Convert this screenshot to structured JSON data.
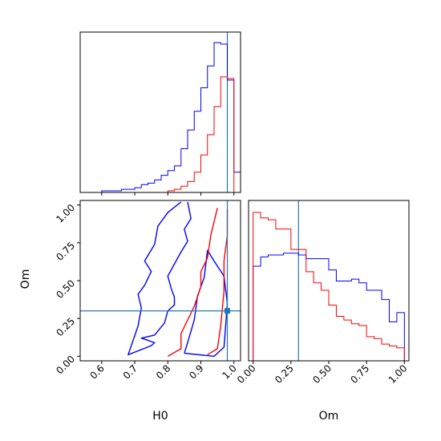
{
  "chart_data": [
    {
      "panel": "H0 marginal histogram",
      "type": "histogram",
      "xlabel": "",
      "xlim": [
        0.535,
        1.02
      ],
      "x_ticks": [
        0.6,
        0.7,
        0.8,
        0.9,
        1.0
      ],
      "truth_x": 0.98,
      "colors": {
        "series_blue": "#0000ff",
        "series_red": "#ff0000",
        "truth": "#1f77b4"
      },
      "bins": [
        0.6,
        0.62,
        0.64,
        0.66,
        0.68,
        0.7,
        0.72,
        0.74,
        0.76,
        0.78,
        0.8,
        0.82,
        0.84,
        0.86,
        0.88,
        0.9,
        0.92,
        0.94,
        0.96,
        0.98,
        1.0,
        1.02
      ],
      "series": [
        {
          "color": "blue",
          "values": [
            1,
            1,
            1,
            2,
            2,
            3,
            5,
            6,
            8,
            11,
            14,
            17,
            28,
            40,
            52,
            67,
            81,
            96,
            95,
            72,
            13
          ]
        },
        {
          "color": "red",
          "values": [
            0,
            0,
            0,
            0,
            0,
            0,
            0,
            0,
            0,
            0,
            1,
            2,
            4,
            7,
            13,
            24,
            37,
            55,
            74,
            73,
            0
          ]
        }
      ]
    },
    {
      "panel": "Om vs H0 2D contours",
      "type": "contour",
      "xlabel": "H0",
      "ylabel": "Om",
      "xlim": [
        0.535,
        1.02
      ],
      "ylim": [
        -0.03,
        1.03
      ],
      "x_ticks": [
        0.6,
        0.7,
        0.8,
        0.9,
        1.0
      ],
      "x_tick_labels": [
        "0.6",
        "0.7",
        "0.8",
        "0.9",
        "1.0"
      ],
      "y_ticks": [
        0.0,
        0.25,
        0.5,
        0.75,
        1.0
      ],
      "y_tick_labels": [
        "0.00",
        "0.25",
        "0.50",
        "0.75",
        "1.00"
      ],
      "truth": {
        "x": 0.98,
        "y": 0.3
      },
      "contours": [
        {
          "color": "blue",
          "level": "outer",
          "points": [
            [
              0.84,
              1.02
            ],
            [
              0.8,
              0.95
            ],
            [
              0.77,
              0.86
            ],
            [
              0.76,
              0.74
            ],
            [
              0.73,
              0.63
            ],
            [
              0.75,
              0.56
            ],
            [
              0.73,
              0.47
            ],
            [
              0.71,
              0.41
            ],
            [
              0.72,
              0.32
            ],
            [
              0.71,
              0.2
            ],
            [
              0.68,
              0.01
            ],
            [
              0.75,
              0.07
            ],
            [
              0.76,
              0.09
            ],
            [
              0.72,
              0.12
            ],
            [
              0.76,
              0.14
            ],
            [
              0.79,
              0.22
            ],
            [
              0.8,
              0.3
            ],
            [
              0.82,
              0.34
            ],
            [
              0.82,
              0.39
            ],
            [
              0.81,
              0.45
            ],
            [
              0.8,
              0.53
            ],
            [
              0.82,
              0.61
            ],
            [
              0.84,
              0.69
            ],
            [
              0.86,
              0.76
            ],
            [
              0.85,
              0.84
            ],
            [
              0.87,
              0.91
            ],
            [
              0.86,
              1.02
            ]
          ]
        },
        {
          "color": "blue",
          "level": "inner",
          "points": [
            [
              0.85,
              0.02
            ],
            [
              0.94,
              0.0
            ],
            [
              0.97,
              0.06
            ],
            [
              0.98,
              0.35
            ],
            [
              0.97,
              0.53
            ],
            [
              0.94,
              0.63
            ],
            [
              0.92,
              0.7
            ],
            [
              0.91,
              0.52
            ],
            [
              0.89,
              0.4
            ],
            [
              0.88,
              0.24
            ],
            [
              0.86,
              0.09
            ],
            [
              0.85,
              0.02
            ]
          ]
        },
        {
          "color": "red",
          "level": "outer",
          "points": [
            [
              0.8,
              0.0
            ],
            [
              0.84,
              0.05
            ],
            [
              0.84,
              0.15
            ],
            [
              0.86,
              0.24
            ],
            [
              0.88,
              0.33
            ],
            [
              0.9,
              0.46
            ],
            [
              0.9,
              0.56
            ],
            [
              0.92,
              0.65
            ],
            [
              0.93,
              0.8
            ],
            [
              0.95,
              0.98
            ]
          ]
        },
        {
          "color": "red",
          "level": "inner",
          "points": [
            [
              0.92,
              0.01
            ],
            [
              0.95,
              0.05
            ],
            [
              0.96,
              0.2
            ],
            [
              0.97,
              0.43
            ],
            [
              0.97,
              0.63
            ],
            [
              0.98,
              0.8
            ],
            [
              0.98,
              0.97
            ]
          ]
        }
      ]
    },
    {
      "panel": "Om marginal histogram",
      "type": "histogram",
      "xlabel": "Om",
      "xlim": [
        -0.03,
        1.03
      ],
      "x_ticks": [
        0.0,
        0.25,
        0.5,
        0.75,
        1.0
      ],
      "x_tick_labels": [
        "0.00",
        "0.25",
        "0.50",
        "0.75",
        "1.00"
      ],
      "truth_x": 0.3,
      "bins": [
        0.0,
        0.05,
        0.1,
        0.15,
        0.2,
        0.25,
        0.3,
        0.35,
        0.4,
        0.45,
        0.5,
        0.55,
        0.6,
        0.65,
        0.7,
        0.75,
        0.8,
        0.85,
        0.9,
        0.95,
        1.0
      ],
      "series": [
        {
          "color": "blue",
          "values": [
            51,
            56,
            57,
            57,
            58,
            58,
            57,
            55,
            55,
            55,
            49,
            43,
            43,
            44,
            42,
            38,
            38,
            33,
            21,
            26
          ]
        },
        {
          "color": "red",
          "values": [
            80,
            77,
            76,
            71,
            71,
            60,
            60,
            48,
            42,
            38,
            30,
            24,
            22,
            20,
            19,
            13,
            12,
            9,
            8,
            7
          ]
        }
      ]
    }
  ]
}
